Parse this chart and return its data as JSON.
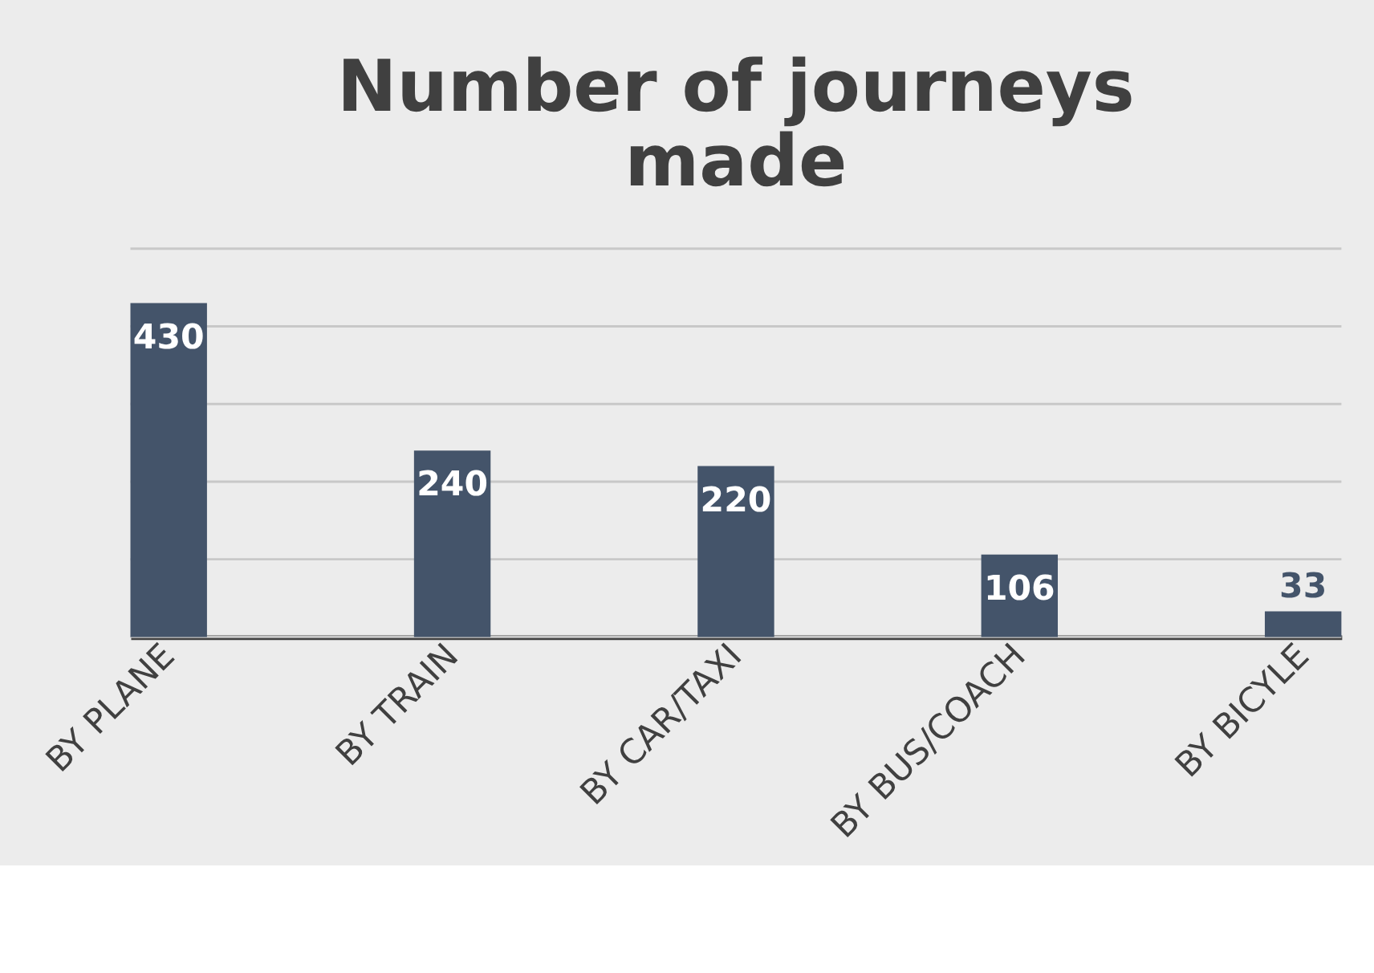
{
  "chart_data": {
    "type": "bar",
    "title": "Number of journeys made",
    "categories": [
      "BY PLANE",
      "BY TRAIN",
      "BY  CAR/TAXI",
      "BY BUS/COACH",
      "BY  BICYLE"
    ],
    "values": [
      430,
      240,
      220,
      106,
      33
    ],
    "color": "#44546a",
    "data_labels": true,
    "ylim": [
      0,
      500
    ],
    "yticks": [
      {
        "value": 0,
        "label": null
      },
      {
        "value": 100,
        "label": null
      },
      {
        "value": 200,
        "label": null
      },
      {
        "value": 300,
        "label": null
      },
      {
        "value": 400,
        "label": null
      },
      {
        "value": 500,
        "label": null
      }
    ],
    "grid": "y",
    "tick_labels": "x"
  }
}
